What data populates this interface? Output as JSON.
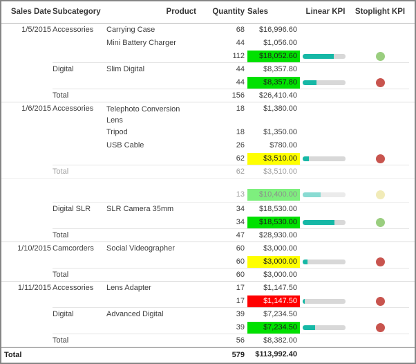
{
  "columns": [
    {
      "key": "sales_date",
      "label": "Sales Date"
    },
    {
      "key": "subcategory",
      "label": "Subcategory"
    },
    {
      "key": "product",
      "label": "Product"
    },
    {
      "key": "quantity",
      "label": "Quantity"
    },
    {
      "key": "sales",
      "label": "Sales"
    },
    {
      "key": "linear_kpi",
      "label": "Linear KPI"
    },
    {
      "key": "stoplight_kpi",
      "label": "Stoplight KPI"
    }
  ],
  "colors": {
    "kpi_green": "#00e100",
    "kpi_yellow": "#ffff00",
    "kpi_red": "#ff0000",
    "bar_fill": "#16b8a6",
    "bar_track": "#d8d8d8",
    "dot_green": "#9ace7f",
    "dot_red": "#c8544e",
    "dot_yellow": "#e4d873"
  },
  "rows": [
    {
      "type": "data",
      "date": "1/5/2015",
      "subcategory": "Accessories",
      "product": "Carrying Case",
      "quantity": "68",
      "sales": "$16,996.60"
    },
    {
      "type": "data",
      "product": "Mini Battery Charger",
      "quantity": "44",
      "sales": "$1,056.00"
    },
    {
      "type": "subtotal",
      "quantity": "112",
      "sales": "$18,052.60",
      "sales_bg": "green",
      "linear": 72,
      "stoplight": "green"
    },
    {
      "type": "data",
      "subcategory": "Digital",
      "product": "Slim Digital",
      "quantity": "44",
      "sales": "$8,357.80"
    },
    {
      "type": "subtotal",
      "quantity": "44",
      "sales": "$8,357.80",
      "sales_bg": "green",
      "linear": 33,
      "stoplight": "red"
    },
    {
      "type": "total",
      "subcategory": "Total",
      "quantity": "156",
      "sales": "$26,410.40"
    },
    {
      "type": "data",
      "tall": true,
      "date": "1/6/2015",
      "subcategory": "Accessories",
      "product": "Telephoto Conversion Lens",
      "quantity": "18",
      "sales": "$1,380.00"
    },
    {
      "type": "data",
      "product": "Tripod",
      "quantity": "18",
      "sales": "$1,350.00"
    },
    {
      "type": "data",
      "product": "USB Cable",
      "quantity": "26",
      "sales": "$780.00"
    },
    {
      "type": "subtotal",
      "quantity": "62",
      "sales": "$3,510.00",
      "sales_bg": "yellow",
      "linear": 14,
      "stoplight": "red"
    },
    {
      "type": "total",
      "faded": true,
      "subcategory": "Total",
      "quantity": "62",
      "sales": "$3,510.00"
    },
    {
      "type": "gap"
    },
    {
      "type": "subtotal",
      "faded": true,
      "pad": true,
      "quantity": "13",
      "sales": "$10,400.00",
      "sales_bg": "green",
      "linear": 42,
      "stoplight": "yellow"
    },
    {
      "type": "data",
      "subcategory": "Digital SLR",
      "product": "SLR Camera 35mm",
      "quantity": "34",
      "sales": "$18,530.00"
    },
    {
      "type": "subtotal",
      "quantity": "34",
      "sales": "$18,530.00",
      "sales_bg": "green",
      "linear": 74,
      "stoplight": "green"
    },
    {
      "type": "total",
      "subcategory": "Total",
      "quantity": "47",
      "sales": "$28,930.00"
    },
    {
      "type": "data",
      "date": "1/10/2015",
      "subcategory": "Camcorders",
      "product": "Social Videographer",
      "quantity": "60",
      "sales": "$3,000.00"
    },
    {
      "type": "subtotal",
      "quantity": "60",
      "sales": "$3,000.00",
      "sales_bg": "yellow",
      "linear": 12,
      "stoplight": "red"
    },
    {
      "type": "total",
      "subcategory": "Total",
      "quantity": "60",
      "sales": "$3,000.00"
    },
    {
      "type": "data",
      "date": "1/11/2015",
      "subcategory": "Accessories",
      "product": "Lens Adapter",
      "quantity": "17",
      "sales": "$1,147.50"
    },
    {
      "type": "subtotal",
      "quantity": "17",
      "sales": "$1,147.50",
      "sales_bg": "red",
      "linear": 5,
      "stoplight": "red"
    },
    {
      "type": "data",
      "subcategory": "Digital",
      "product": "Advanced Digital",
      "quantity": "39",
      "sales": "$7,234.50"
    },
    {
      "type": "subtotal",
      "quantity": "39",
      "sales": "$7,234.50",
      "sales_bg": "green",
      "linear": 29,
      "stoplight": "red"
    },
    {
      "type": "total",
      "subcategory": "Total",
      "quantity": "56",
      "sales": "$8,382.00"
    },
    {
      "type": "grand",
      "date": "Total",
      "quantity": "579",
      "sales": "$113,992.40"
    }
  ]
}
